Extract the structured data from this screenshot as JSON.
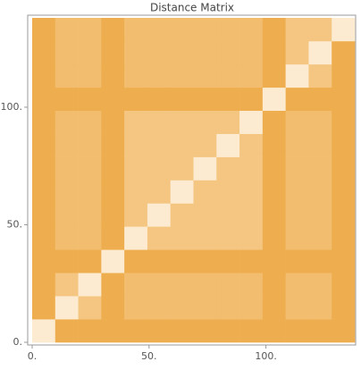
{
  "chart_data": {
    "type": "heatmap",
    "title": "Distance Matrix",
    "xlim": [
      0,
      138
    ],
    "ylim": [
      0,
      138
    ],
    "xticks": [
      {
        "value": 0,
        "label": "0."
      },
      {
        "value": 50,
        "label": "50."
      },
      {
        "value": 100,
        "label": "100."
      }
    ],
    "yticks": [
      {
        "value": 0,
        "label": "0."
      },
      {
        "value": 50,
        "label": "50."
      },
      {
        "value": 100,
        "label": "100."
      }
    ],
    "zlim": [
      0,
      1
    ],
    "colors": [
      "#fffbf2",
      "#e8900f"
    ],
    "z": [
      [
        0.15,
        0.72,
        0.72,
        0.72,
        0.72,
        0.72,
        0.72,
        0.72,
        0.72,
        0.72,
        0.72,
        0.72,
        0.72,
        0.72
      ],
      [
        0.72,
        0.15,
        0.5,
        0.72,
        0.58,
        0.58,
        0.58,
        0.58,
        0.58,
        0.58,
        0.72,
        0.58,
        0.58,
        0.72
      ],
      [
        0.72,
        0.5,
        0.15,
        0.72,
        0.58,
        0.58,
        0.58,
        0.58,
        0.58,
        0.58,
        0.72,
        0.58,
        0.58,
        0.72
      ],
      [
        0.72,
        0.72,
        0.72,
        0.15,
        0.72,
        0.72,
        0.72,
        0.72,
        0.72,
        0.72,
        0.72,
        0.72,
        0.72,
        0.72
      ],
      [
        0.72,
        0.58,
        0.58,
        0.72,
        0.15,
        0.5,
        0.5,
        0.5,
        0.5,
        0.5,
        0.72,
        0.58,
        0.58,
        0.72
      ],
      [
        0.72,
        0.58,
        0.58,
        0.72,
        0.5,
        0.15,
        0.5,
        0.5,
        0.5,
        0.5,
        0.72,
        0.58,
        0.58,
        0.72
      ],
      [
        0.72,
        0.58,
        0.58,
        0.72,
        0.5,
        0.5,
        0.15,
        0.5,
        0.5,
        0.5,
        0.72,
        0.58,
        0.58,
        0.72
      ],
      [
        0.72,
        0.58,
        0.58,
        0.72,
        0.5,
        0.5,
        0.5,
        0.15,
        0.5,
        0.5,
        0.72,
        0.58,
        0.58,
        0.72
      ],
      [
        0.72,
        0.58,
        0.58,
        0.72,
        0.5,
        0.5,
        0.5,
        0.5,
        0.15,
        0.5,
        0.72,
        0.58,
        0.58,
        0.72
      ],
      [
        0.72,
        0.58,
        0.58,
        0.72,
        0.5,
        0.5,
        0.5,
        0.5,
        0.5,
        0.15,
        0.72,
        0.58,
        0.58,
        0.72
      ],
      [
        0.72,
        0.72,
        0.72,
        0.72,
        0.72,
        0.72,
        0.72,
        0.72,
        0.72,
        0.72,
        0.15,
        0.72,
        0.72,
        0.72
      ],
      [
        0.72,
        0.58,
        0.58,
        0.72,
        0.58,
        0.58,
        0.58,
        0.58,
        0.58,
        0.58,
        0.72,
        0.15,
        0.5,
        0.72
      ],
      [
        0.72,
        0.58,
        0.58,
        0.72,
        0.58,
        0.58,
        0.58,
        0.58,
        0.58,
        0.58,
        0.72,
        0.5,
        0.15,
        0.72
      ],
      [
        0.72,
        0.58,
        0.58,
        0.72,
        0.58,
        0.58,
        0.58,
        0.58,
        0.58,
        0.58,
        0.72,
        0.5,
        0.5,
        0.15
      ]
    ]
  }
}
